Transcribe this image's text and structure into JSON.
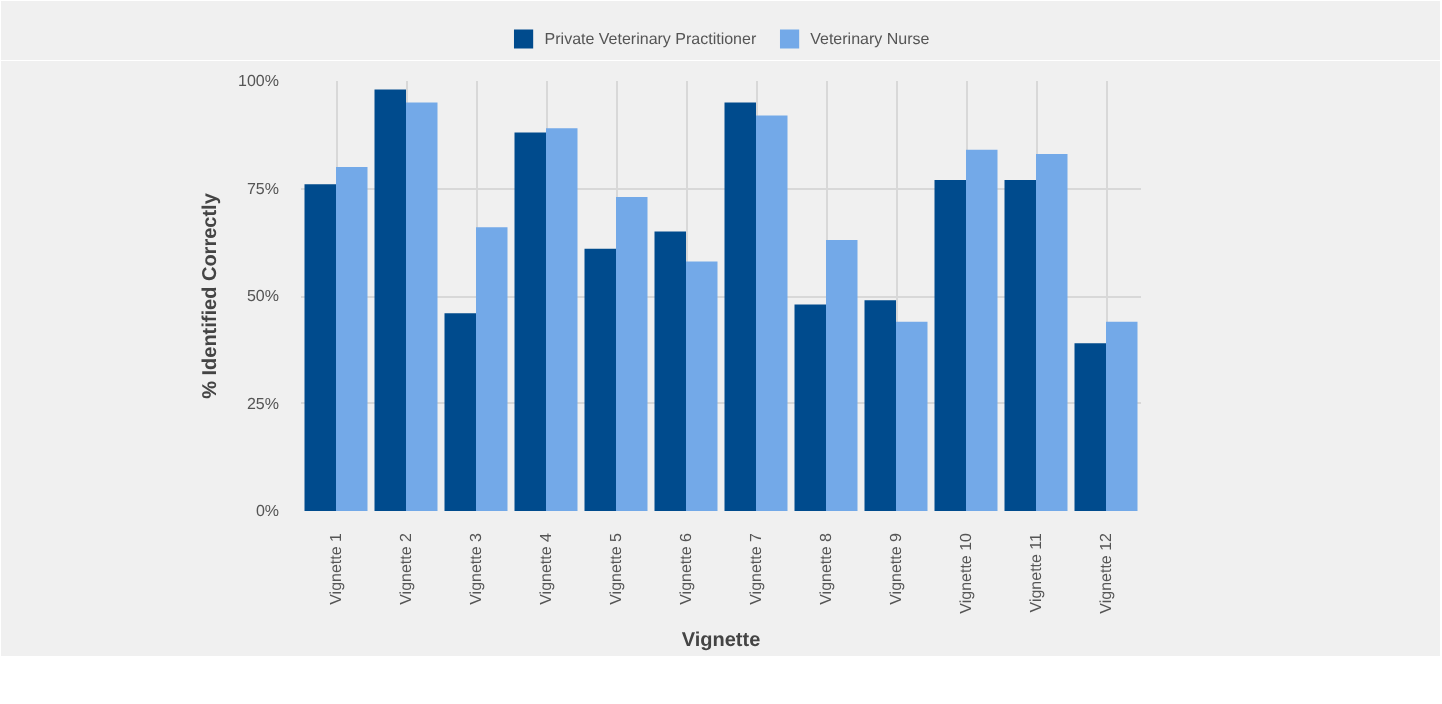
{
  "chart_data": {
    "type": "bar",
    "xlabel": "Vignette",
    "ylabel": "% Identified Correctly",
    "categories": [
      "Vignette 1",
      "Vignette 2",
      "Vignette 3",
      "Vignette 4",
      "Vignette 5",
      "Vignette 6",
      "Vignette 7",
      "Vignette 8",
      "Vignette 9",
      "Vignette 10",
      "Vignette 11",
      "Vignette 12"
    ],
    "series": [
      {
        "name": "Private Veterinary Practitioner",
        "color": "#004b8d",
        "values": [
          76,
          98,
          46,
          88,
          61,
          65,
          95,
          48,
          49,
          77,
          77,
          39
        ]
      },
      {
        "name": "Veterinary Nurse",
        "color": "#73a9e8",
        "values": [
          80,
          95,
          66,
          89,
          73,
          58,
          92,
          63,
          44,
          84,
          83,
          44
        ]
      }
    ],
    "ylim": [
      0,
      100
    ],
    "yticks": [
      {
        "value": 0,
        "label": "0%"
      },
      {
        "value": 25,
        "label": "25%"
      },
      {
        "value": 50,
        "label": "50%"
      },
      {
        "value": 75,
        "label": "75%"
      },
      {
        "value": 100,
        "label": "100%"
      }
    ],
    "grid": true,
    "legend": "top"
  }
}
